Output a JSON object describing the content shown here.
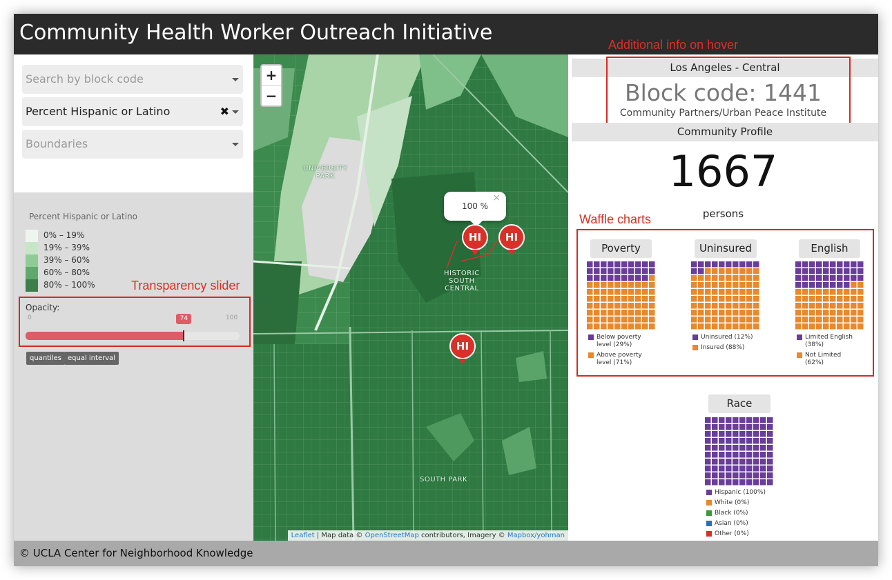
{
  "app": {
    "title": "Community Health Worker Outreach Initiative"
  },
  "controls": {
    "search_placeholder": "Search by block code",
    "variable_selected": "Percent Hispanic or Latino",
    "clear_icon": "✖",
    "boundaries_placeholder": "Boundaries"
  },
  "legend": {
    "title": "Percent Hispanic or Latino",
    "bins": [
      {
        "label": "0% – 19%",
        "color": "#eef5ee"
      },
      {
        "label": "19% – 39%",
        "color": "#c7e6c8"
      },
      {
        "label": "39% – 60%",
        "color": "#8fcc95"
      },
      {
        "label": "60% – 80%",
        "color": "#5fa96c"
      },
      {
        "label": "80% – 100%",
        "color": "#3c7f4b"
      }
    ]
  },
  "opacity": {
    "label": "Opacity:",
    "min": "0",
    "max": "100",
    "value": "74",
    "value_num": 74
  },
  "classification": {
    "quantiles": "quantiles",
    "equal_interval": "equal interval"
  },
  "annotations": {
    "transparency": "Transparency slider",
    "hover": "Additional info on hover",
    "waffle": "Waffle charts"
  },
  "map": {
    "zoom_in": "+",
    "zoom_out": "−",
    "popup_text": "100 %",
    "popup_close": "×",
    "marker_text": "HI",
    "labels": [
      {
        "text": "UNIVERSITY\nPARK"
      },
      {
        "text": "HISTORIC\nSOUTH\nCENTRAL"
      },
      {
        "text": "SOUTH PARK"
      }
    ],
    "attribution": {
      "leaflet": "Leaflet",
      "sep1": " | Map data © ",
      "osm": "OpenStreetMap",
      "sep2": " contributors, Imagery © ",
      "mapbox": "Mapbox/yohman"
    }
  },
  "profile": {
    "region": "Los Angeles - Central",
    "block_code": "Block code: 1441",
    "partner": "Community Partners/Urban Peace Institute",
    "section_title": "Community Profile",
    "population": "1667",
    "population_unit": "persons"
  },
  "waffles": [
    {
      "title": "Poverty",
      "a_pct": 29,
      "a_label": "Below poverty level (29%)",
      "b_label": "Above poverty level (71%)"
    },
    {
      "title": "Uninsured",
      "a_pct": 12,
      "a_label": "Uninsured (12%)",
      "b_label": "Insured (88%)"
    },
    {
      "title": "English",
      "a_pct": 38,
      "a_label": "Limited English (38%)",
      "b_label": "Not Limited (62%)"
    }
  ],
  "race": {
    "title": "Race",
    "items": [
      {
        "label": "Hispanic (100%)",
        "color": "#6a3d9a",
        "pct": 100
      },
      {
        "label": "White (0%)",
        "color": "#e8892e",
        "pct": 0
      },
      {
        "label": "Black (0%)",
        "color": "#3a9a3a",
        "pct": 0
      },
      {
        "label": "Asian (0%)",
        "color": "#2f6db3",
        "pct": 0
      },
      {
        "label": "Other (0%)",
        "color": "#d9302a",
        "pct": 0
      }
    ]
  },
  "colors": {
    "purple": "#6a3d9a",
    "orange": "#e8892e",
    "accent": "#dd5c66"
  },
  "footer": {
    "text": "© UCLA Center for Neighborhood Knowledge"
  }
}
